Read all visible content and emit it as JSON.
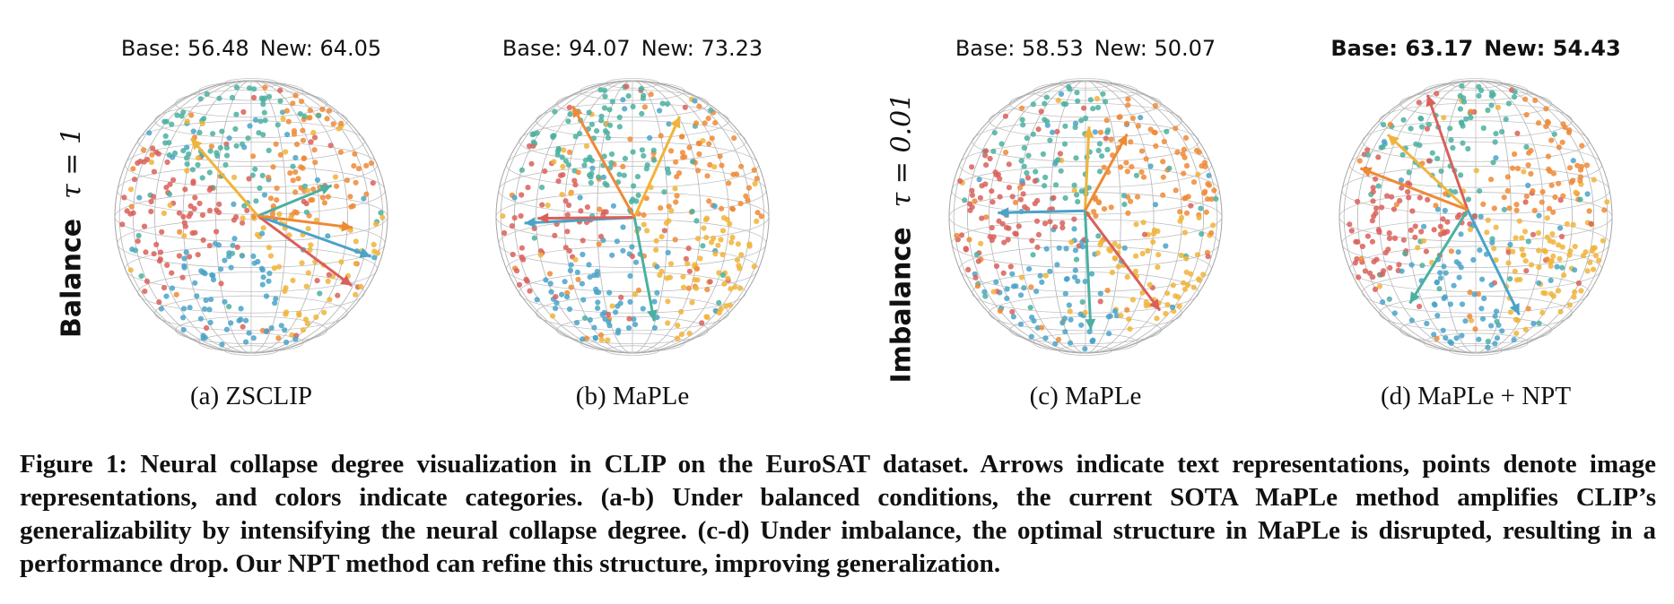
{
  "figure": {
    "rows": [
      {
        "word": "Balance",
        "tau": "τ = 1"
      },
      {
        "word": "Imbalance",
        "tau": "τ = 0.01"
      }
    ],
    "panels": [
      {
        "base_label": "Base: 56.48",
        "new_label": "New: 64.05",
        "caption": "(a) ZSCLIP",
        "bold": false,
        "seed": 11
      },
      {
        "base_label": "Base: 94.07",
        "new_label": "New: 73.23",
        "caption": "(b) MaPLe",
        "bold": false,
        "seed": 23
      },
      {
        "base_label": "Base: 58.53",
        "new_label": "New: 50.07",
        "caption": "(c) MaPLe",
        "bold": false,
        "seed": 37
      },
      {
        "base_label": "Base: 63.17",
        "new_label": "New: 54.43",
        "caption": "(d) MaPLe + NPT",
        "bold": true,
        "seed": 51
      }
    ],
    "category_colors": [
      "#f0b43a",
      "#4aa3c8",
      "#d9605a",
      "#4bb0a0",
      "#ee8a36"
    ],
    "caption": "Figure 1: Neural collapse degree visualization in CLIP on the EuroSAT dataset. Arrows indicate text representations, points denote image representations, and colors indicate categories. (a-b) Under balanced conditions, the current SOTA MaPLe method amplifies CLIP’s generalizability by intensifying the neural collapse degree. (c-d) Under imbalance, the optimal structure in MaPLe is disrupted, resulting in a performance drop. Our NPT method can refine this structure, improving generalization."
  }
}
